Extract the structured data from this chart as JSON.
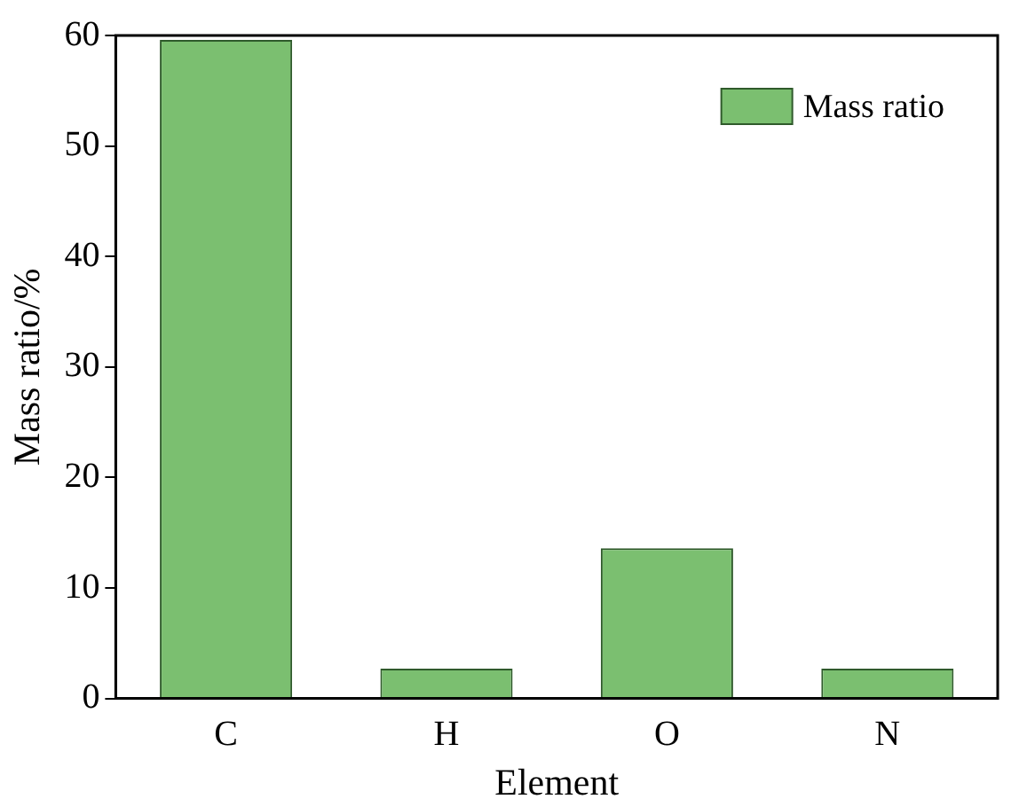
{
  "chart_data": {
    "type": "bar",
    "xlabel": "Element",
    "ylabel": "Mass ratio/%",
    "categories": [
      "C",
      "H",
      "O",
      "N"
    ],
    "series": [
      {
        "name": "Mass ratio",
        "color": "#7bbf70",
        "values": [
          59.6,
          2.7,
          13.6,
          2.7
        ]
      }
    ],
    "ylim": [
      0,
      60
    ],
    "yticks": [
      0,
      10,
      20,
      30,
      40,
      50,
      60
    ],
    "grid": false,
    "legend": "top right"
  }
}
